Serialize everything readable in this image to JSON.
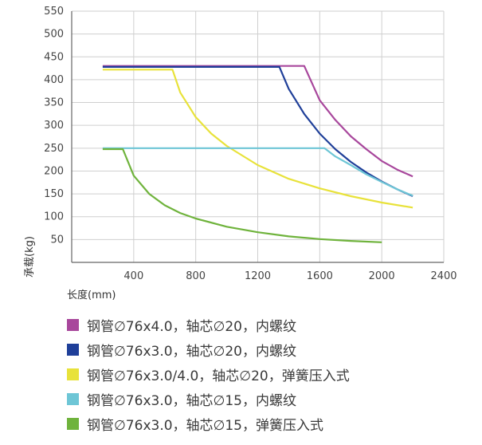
{
  "chart_data": {
    "type": "line",
    "title": "",
    "xlabel": "长度(mm)",
    "ylabel": "承载(kg)",
    "xlim": [
      0,
      2400
    ],
    "ylim": [
      0,
      550
    ],
    "xticks": [
      400,
      800,
      1200,
      1600,
      2000,
      2400
    ],
    "yticks": [
      50,
      100,
      150,
      200,
      250,
      300,
      350,
      400,
      450,
      500,
      550
    ],
    "grid": true,
    "legend_position": "bottom",
    "series": [
      {
        "name": "钢管∅76x4.0，轴芯∅20，内螺纹",
        "color": "#a8479c",
        "x": [
          200,
          1500,
          1600,
          1700,
          1800,
          1900,
          2000,
          2100,
          2200
        ],
        "y": [
          430,
          430,
          355,
          312,
          276,
          248,
          222,
          203,
          188
        ]
      },
      {
        "name": "钢管∅76x3.0，轴芯∅20，内螺纹",
        "color": "#1f3f99",
        "x": [
          200,
          1340,
          1400,
          1500,
          1600,
          1700,
          1800,
          1900,
          2000,
          2100,
          2200
        ],
        "y": [
          428,
          428,
          380,
          325,
          282,
          248,
          220,
          197,
          177,
          160,
          145
        ]
      },
      {
        "name": "钢管∅76x3.0/4.0，轴芯∅20，弹簧压入式",
        "color": "#e8e23a",
        "x": [
          200,
          650,
          700,
          800,
          900,
          1000,
          1200,
          1400,
          1600,
          1800,
          2000,
          2200
        ],
        "y": [
          422,
          422,
          372,
          318,
          282,
          255,
          213,
          183,
          162,
          145,
          131,
          120
        ]
      },
      {
        "name": "钢管∅76x3.0，轴芯∅15，内螺纹",
        "color": "#6ec6d6",
        "x": [
          200,
          1630,
          1700,
          1800,
          1900,
          2000,
          2100,
          2200
        ],
        "y": [
          250,
          250,
          232,
          213,
          193,
          176,
          160,
          146
        ]
      },
      {
        "name": "钢管∅76x3.0，轴芯∅15，弹簧压入式",
        "color": "#6fb33c",
        "x": [
          200,
          330,
          400,
          500,
          600,
          700,
          800,
          1000,
          1200,
          1400,
          1600,
          1800,
          2000
        ],
        "y": [
          248,
          248,
          190,
          150,
          125,
          108,
          96,
          78,
          66,
          57,
          51,
          47,
          44
        ]
      }
    ]
  }
}
